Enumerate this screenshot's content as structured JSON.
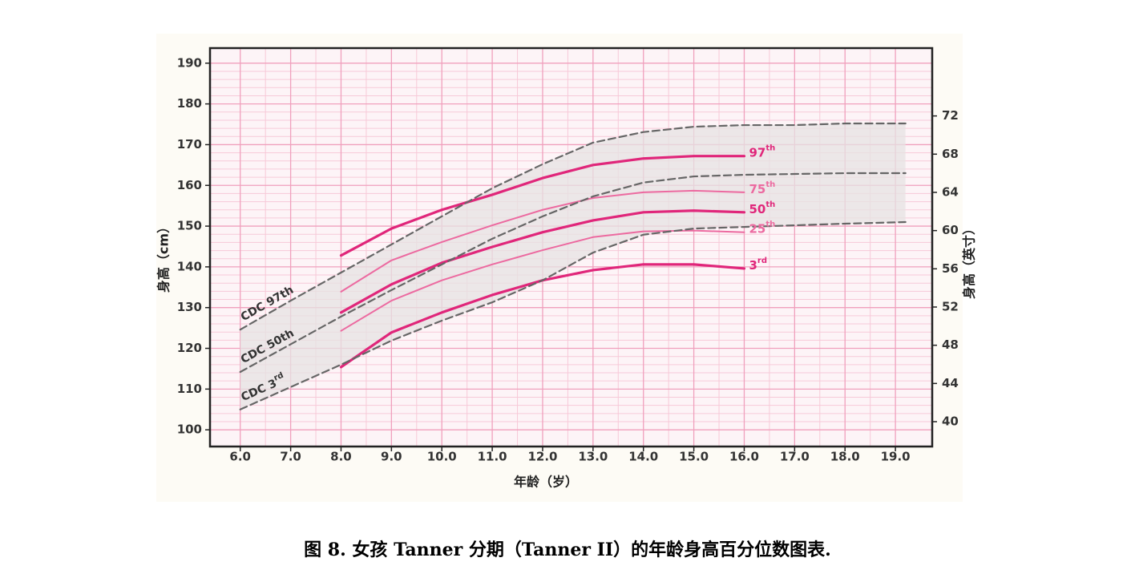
{
  "chart_data": {
    "type": "line",
    "caption": "图 8. 女孩 Tanner 分期（Tanner II）的年龄身高百分位数图表.",
    "x_label": "年龄（岁）",
    "y_label": "身高（cm）",
    "y2_label": "身高（英寸）",
    "xlim": [
      5.4,
      19.73
    ],
    "xticks": [
      {
        "value": 6,
        "label": "6.0"
      },
      {
        "value": 7,
        "label": "7.0"
      },
      {
        "value": 8,
        "label": "8.0"
      },
      {
        "value": 9,
        "label": "9.0"
      },
      {
        "value": 10,
        "label": "10.0"
      },
      {
        "value": 11,
        "label": "11.0"
      },
      {
        "value": 12,
        "label": "12.0"
      },
      {
        "value": 13,
        "label": "13.0"
      },
      {
        "value": 14,
        "label": "14.0"
      },
      {
        "value": 15,
        "label": "15.0"
      },
      {
        "value": 16,
        "label": "16.0"
      },
      {
        "value": 17,
        "label": "17.0"
      },
      {
        "value": 18,
        "label": "18.0"
      },
      {
        "value": 19,
        "label": "19.0"
      }
    ],
    "ylim": [
      95.9,
      193.7
    ],
    "yticks": [
      100,
      110,
      120,
      130,
      140,
      150,
      160,
      170,
      180,
      190
    ],
    "y2lim": [
      37.4,
      79.1
    ],
    "y2ticks": [
      40,
      44,
      48,
      52,
      56,
      60,
      64,
      68,
      72
    ],
    "grid": true,
    "band": [
      5,
      7
    ],
    "series": [
      {
        "name": "97th",
        "color": "#e0267a",
        "width": 3.2,
        "dash": false,
        "sup": true,
        "x": [
          8,
          9,
          10,
          11,
          12,
          13,
          14,
          15,
          16
        ],
        "values": [
          142.8,
          149.4,
          154,
          157.7,
          161.8,
          165,
          166.6,
          167.2,
          167.2
        ]
      },
      {
        "name": "75th",
        "color": "#ec6aa0",
        "width": 2,
        "dash": false,
        "sup": true,
        "x": [
          8,
          9,
          10,
          11,
          12,
          13,
          14,
          15,
          16
        ],
        "values": [
          133.9,
          141.6,
          146.1,
          150.2,
          154,
          156.9,
          158.3,
          158.7,
          158.3
        ]
      },
      {
        "name": "50th",
        "color": "#e0267a",
        "width": 3.2,
        "dash": false,
        "sup": true,
        "x": [
          8,
          9,
          10,
          11,
          12,
          13,
          14,
          15,
          16
        ],
        "values": [
          128.8,
          135.7,
          141,
          144.9,
          148.5,
          151.4,
          153.4,
          153.8,
          153.4
        ]
      },
      {
        "name": "25th",
        "color": "#ec6aa0",
        "width": 2,
        "dash": false,
        "sup": true,
        "x": [
          8,
          9,
          10,
          11,
          12,
          13,
          14,
          15,
          16
        ],
        "values": [
          124.3,
          131.7,
          136.7,
          140.6,
          144.1,
          147.3,
          148.7,
          148.9,
          148.5
        ]
      },
      {
        "name": "3rd",
        "color": "#e0267a",
        "width": 3.2,
        "dash": false,
        "sup": true,
        "x": [
          8,
          9,
          10,
          11,
          12,
          13,
          14,
          15,
          16
        ],
        "values": [
          115.4,
          123.9,
          128.8,
          133.1,
          136.7,
          139.2,
          140.6,
          140.6,
          139.6
        ]
      },
      {
        "name": "CDC 97th",
        "color": "#666666",
        "width": 2.2,
        "dash": true,
        "sup": false,
        "x": [
          6,
          7,
          8,
          9,
          10,
          11,
          12,
          13,
          14,
          15,
          16,
          17,
          18,
          19.2
        ],
        "values": [
          124.6,
          131.7,
          138.6,
          145.5,
          152.4,
          159.3,
          165.2,
          170.5,
          173.1,
          174.4,
          174.8,
          174.8,
          175.2,
          175.2
        ]
      },
      {
        "name": "CDC 50th",
        "color": "#666666",
        "width": 2.2,
        "dash": true,
        "sup": false,
        "x": [
          6,
          7,
          8,
          9,
          10,
          11,
          12,
          13,
          14,
          15,
          16,
          17,
          18,
          19.2
        ],
        "values": [
          114.2,
          121,
          127.8,
          134.3,
          140.6,
          146.9,
          152.4,
          157.3,
          160.7,
          162.2,
          162.6,
          162.8,
          163,
          163
        ]
      },
      {
        "name": "CDC 3rd",
        "color": "#666666",
        "width": 2.2,
        "dash": true,
        "sup": true,
        "x": [
          6,
          7,
          8,
          9,
          10,
          11,
          12,
          13,
          14,
          15,
          16,
          17,
          18,
          19.2
        ],
        "values": [
          105,
          110.5,
          116,
          121.9,
          126.8,
          131.3,
          136.7,
          143.5,
          147.9,
          149.4,
          149.8,
          150.2,
          150.6,
          151
        ]
      }
    ]
  }
}
